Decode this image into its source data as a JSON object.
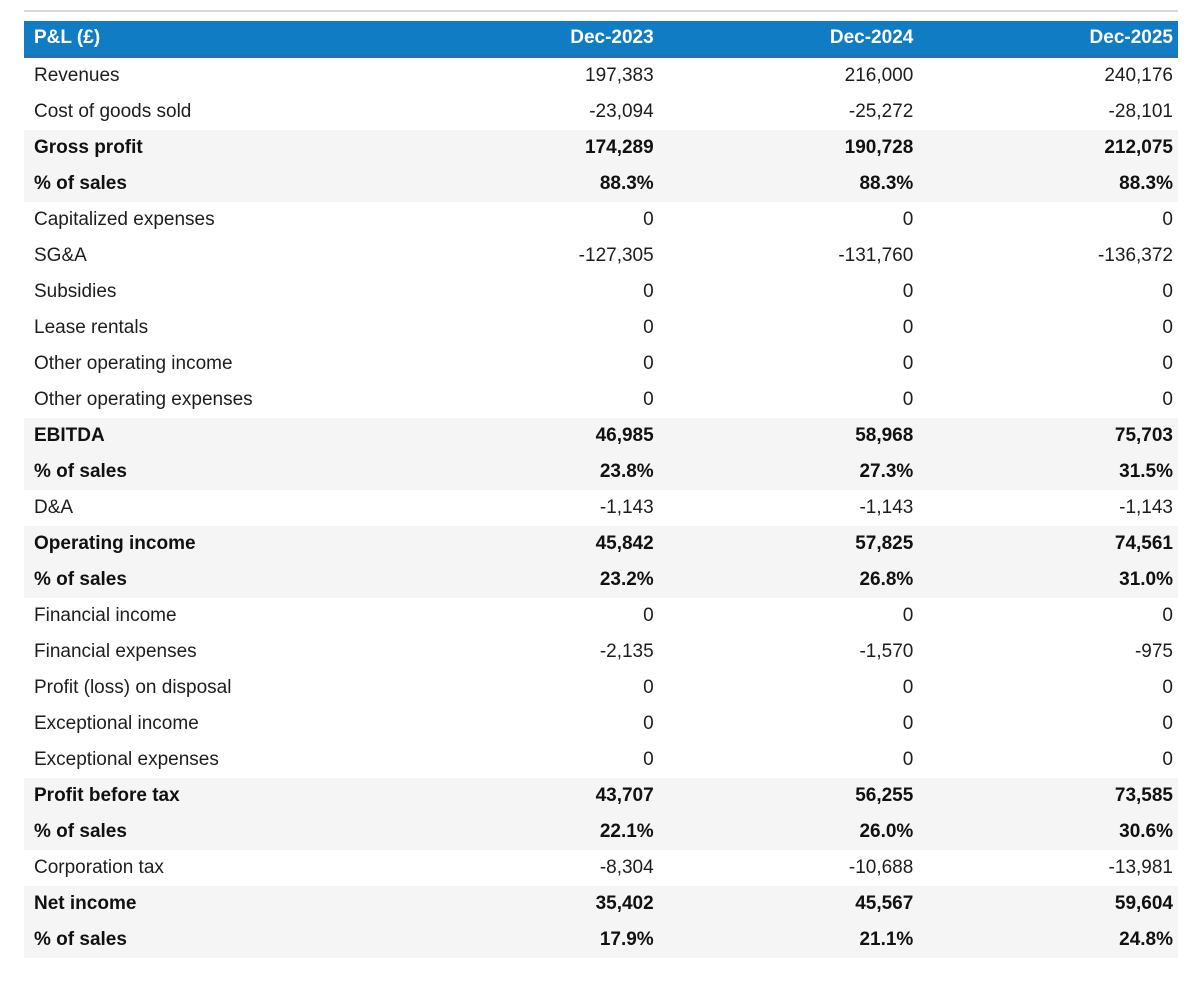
{
  "chart_data": {
    "type": "table",
    "title": "P&L (£)",
    "columns": [
      "Dec-2023",
      "Dec-2024",
      "Dec-2025"
    ],
    "rows": [
      {
        "label": "Revenues",
        "values": [
          "197,383",
          "216,000",
          "240,176"
        ],
        "emphasis": false
      },
      {
        "label": "Cost of goods sold",
        "values": [
          "-23,094",
          "-25,272",
          "-28,101"
        ],
        "emphasis": false
      },
      {
        "label": "Gross profit",
        "values": [
          "174,289",
          "190,728",
          "212,075"
        ],
        "emphasis": true
      },
      {
        "label": "% of sales",
        "values": [
          "88.3%",
          "88.3%",
          "88.3%"
        ],
        "emphasis": true
      },
      {
        "label": "Capitalized expenses",
        "values": [
          "0",
          "0",
          "0"
        ],
        "emphasis": false
      },
      {
        "label": "SG&A",
        "values": [
          "-127,305",
          "-131,760",
          "-136,372"
        ],
        "emphasis": false
      },
      {
        "label": "Subsidies",
        "values": [
          "0",
          "0",
          "0"
        ],
        "emphasis": false
      },
      {
        "label": "Lease rentals",
        "values": [
          "0",
          "0",
          "0"
        ],
        "emphasis": false
      },
      {
        "label": "Other operating income",
        "values": [
          "0",
          "0",
          "0"
        ],
        "emphasis": false
      },
      {
        "label": "Other operating expenses",
        "values": [
          "0",
          "0",
          "0"
        ],
        "emphasis": false
      },
      {
        "label": "EBITDA",
        "values": [
          "46,985",
          "58,968",
          "75,703"
        ],
        "emphasis": true
      },
      {
        "label": "% of sales",
        "values": [
          "23.8%",
          "27.3%",
          "31.5%"
        ],
        "emphasis": true
      },
      {
        "label": "D&A",
        "values": [
          "-1,143",
          "-1,143",
          "-1,143"
        ],
        "emphasis": false
      },
      {
        "label": "Operating income",
        "values": [
          "45,842",
          "57,825",
          "74,561"
        ],
        "emphasis": true
      },
      {
        "label": "% of sales",
        "values": [
          "23.2%",
          "26.8%",
          "31.0%"
        ],
        "emphasis": true
      },
      {
        "label": "Financial income",
        "values": [
          "0",
          "0",
          "0"
        ],
        "emphasis": false
      },
      {
        "label": "Financial expenses",
        "values": [
          "-2,135",
          "-1,570",
          "-975"
        ],
        "emphasis": false
      },
      {
        "label": "Profit (loss) on disposal",
        "values": [
          "0",
          "0",
          "0"
        ],
        "emphasis": false
      },
      {
        "label": "Exceptional income",
        "values": [
          "0",
          "0",
          "0"
        ],
        "emphasis": false
      },
      {
        "label": "Exceptional expenses",
        "values": [
          "0",
          "0",
          "0"
        ],
        "emphasis": false
      },
      {
        "label": "Profit before tax",
        "values": [
          "43,707",
          "56,255",
          "73,585"
        ],
        "emphasis": true
      },
      {
        "label": "% of sales",
        "values": [
          "22.1%",
          "26.0%",
          "30.6%"
        ],
        "emphasis": true
      },
      {
        "label": "Corporation tax",
        "values": [
          "-8,304",
          "-10,688",
          "-13,981"
        ],
        "emphasis": false
      },
      {
        "label": "Net income",
        "values": [
          "35,402",
          "45,567",
          "59,604"
        ],
        "emphasis": true
      },
      {
        "label": "% of sales",
        "values": [
          "17.9%",
          "21.1%",
          "24.8%"
        ],
        "emphasis": true
      }
    ]
  },
  "colors": {
    "header_bg": "#107cc4",
    "header_border_bottom": "#2f6da8",
    "header_text": "#ffffff",
    "emphasis_row_bg": "#f5f5f5",
    "body_text": "#1d1d1d",
    "top_rule": "#d9d9d9",
    "page_bg": "#ffffff"
  }
}
